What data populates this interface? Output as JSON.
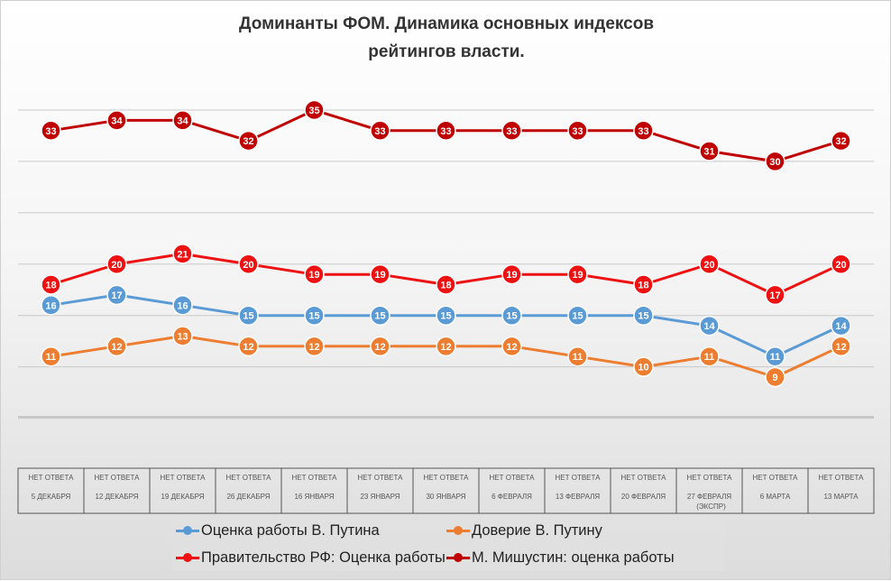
{
  "chart_data": {
    "type": "line",
    "title_line1": "Доминанты ФОМ. Динамика основных индексов",
    "title_line2": "рейтингов власти.",
    "categories": [
      {
        "top": "НЕТ ОТВЕТА",
        "bottom": "5 ДЕКАБРЯ"
      },
      {
        "top": "НЕТ ОТВЕТА",
        "bottom": "12 ДЕКАБРЯ"
      },
      {
        "top": "НЕТ ОТВЕТА",
        "bottom": "19 ДЕКАБРЯ"
      },
      {
        "top": "НЕТ ОТВЕТА",
        "bottom": "26 ДЕКАБРЯ"
      },
      {
        "top": "НЕТ ОТВЕТА",
        "bottom": "16 ЯНВАРЯ"
      },
      {
        "top": "НЕТ ОТВЕТА",
        "bottom": "23 ЯНВАРЯ"
      },
      {
        "top": "НЕТ ОТВЕТА",
        "bottom": "30 ЯНВАРЯ"
      },
      {
        "top": "НЕТ ОТВЕТА",
        "bottom": "6 ФЕВРАЛЯ"
      },
      {
        "top": "НЕТ ОТВЕТА",
        "bottom": "13 ФЕВРАЛЯ"
      },
      {
        "top": "НЕТ ОТВЕТА",
        "bottom": "20 ФЕВРАЛЯ"
      },
      {
        "top": "НЕТ ОТВЕТА",
        "bottom": "27 ФЕВРАЛЯ",
        "extra": "(ЭКСПР)"
      },
      {
        "top": "НЕТ ОТВЕТА",
        "bottom": "6 МАРТА"
      },
      {
        "top": "НЕТ ОТВЕТА",
        "bottom": "13 МАРТА"
      }
    ],
    "series": [
      {
        "name": "Оценка работы В. Путина",
        "color": "#5b9bd5",
        "values": [
          16,
          17,
          16,
          15,
          15,
          15,
          15,
          15,
          15,
          15,
          14,
          11,
          14
        ]
      },
      {
        "name": "Доверие В. Путину",
        "color": "#ed7d31",
        "values": [
          11,
          12,
          13,
          12,
          12,
          12,
          12,
          12,
          11,
          10,
          11,
          9,
          12
        ]
      },
      {
        "name": "Правительство РФ: Оценка работы",
        "color": "#ee1111",
        "values": [
          18,
          20,
          21,
          20,
          19,
          19,
          18,
          19,
          19,
          18,
          20,
          17,
          20
        ]
      },
      {
        "name": "М. Мишустин: оценка работы",
        "color": "#c00000",
        "values": [
          33,
          34,
          34,
          32,
          35,
          33,
          33,
          33,
          33,
          33,
          31,
          30,
          32
        ]
      }
    ],
    "ylim": [
      2,
      38
    ],
    "gridlines": [
      5,
      10,
      15,
      20,
      25,
      30,
      35
    ],
    "legend": "bottom"
  }
}
